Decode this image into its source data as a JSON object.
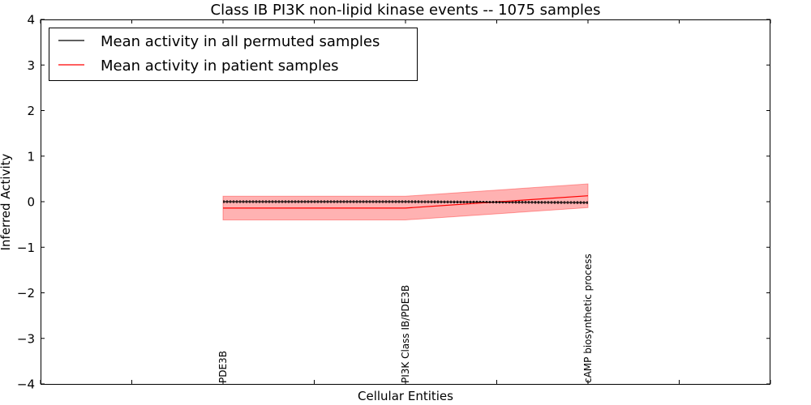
{
  "chart_data": {
    "type": "line",
    "title": "Class IB PI3K non-lipid kinase events -- 1075 samples",
    "xlabel": "Cellular Entities",
    "ylabel": "Inferred Activity",
    "ylim": [
      -4,
      4
    ],
    "yticks": [
      4,
      3,
      2,
      1,
      0,
      -1,
      -2,
      -3,
      -4
    ],
    "ytick_labels": [
      "4",
      "3",
      "2",
      "1",
      "0",
      "−1",
      "−2",
      "−3",
      "−4"
    ],
    "xlim": [
      -1,
      3
    ],
    "categories": [
      "PDE3B",
      "PI3K Class IB/PDE3B",
      "cAMP biosynthetic process"
    ],
    "x": [
      0,
      1,
      2
    ],
    "grid": false,
    "legend_position": "top-left",
    "series": [
      {
        "name": "Mean activity in all permuted samples",
        "color": "#000000",
        "values": [
          0.0,
          0.0,
          -0.02
        ],
        "band": {
          "upper": [
            0.02,
            0.02,
            0.0
          ],
          "lower": [
            -0.02,
            -0.02,
            -0.04
          ]
        }
      },
      {
        "name": "Mean activity in patient samples",
        "color": "#ff0000",
        "values": [
          -0.14,
          -0.14,
          0.13
        ],
        "band": {
          "upper": [
            0.12,
            0.12,
            0.39
          ],
          "lower": [
            -0.4,
            -0.4,
            -0.13
          ]
        },
        "band_color": "#ff0000",
        "band_opacity": 0.3
      }
    ]
  }
}
